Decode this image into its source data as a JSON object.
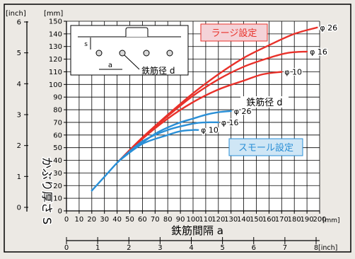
{
  "chart_data": {
    "type": "line",
    "x_axis_mm": {
      "label": "鉄筋間隔 a",
      "unit": "[mm]",
      "range": [
        0,
        200
      ],
      "ticks": [
        0,
        10,
        20,
        30,
        40,
        50,
        60,
        70,
        80,
        90,
        100,
        110,
        120,
        130,
        140,
        150,
        160,
        170,
        180,
        190,
        200
      ]
    },
    "x_axis_inch": {
      "unit": "8[inch]",
      "range": [
        0,
        8
      ],
      "ticks": [
        "0",
        "1",
        "2",
        "3",
        "4",
        "5",
        "6",
        "7",
        "8"
      ]
    },
    "y_axis_mm": {
      "label": "かぶり厚さ S",
      "unit": "[mm]",
      "range": [
        0,
        150
      ],
      "ticks": [
        0,
        10,
        20,
        30,
        40,
        50,
        60,
        70,
        80,
        90,
        100,
        110,
        120,
        130,
        140,
        150
      ]
    },
    "y_axis_inch": {
      "unit": "[inch]",
      "range": [
        0,
        6
      ],
      "ticks": [
        "0",
        "1",
        "2",
        "3",
        "4",
        "5",
        "6"
      ]
    },
    "grid": true,
    "groups": [
      {
        "name": "ラージ設定",
        "color": "#e8312a"
      },
      {
        "name": "スモール設定",
        "color": "#2a8fd6"
      }
    ],
    "series": [
      {
        "name": "φ 26",
        "group": "ラージ設定",
        "x": [
          42,
          60,
          80,
          100,
          120,
          140,
          160,
          180,
          198
        ],
        "y": [
          40,
          58,
          76,
          93,
          108,
          121,
          131,
          140,
          145
        ]
      },
      {
        "name": "φ 16",
        "group": "ラージ設定",
        "x": [
          42,
          60,
          80,
          100,
          120,
          140,
          160,
          175,
          190
        ],
        "y": [
          40,
          58,
          75,
          91,
          104,
          114,
          121,
          125,
          126
        ]
      },
      {
        "name": "φ 10",
        "group": "ラージ設定",
        "x": [
          42,
          60,
          80,
          100,
          120,
          140,
          155,
          170
        ],
        "y": [
          40,
          57,
          73,
          86,
          96,
          103,
          108,
          110
        ]
      },
      {
        "name": "φ 26",
        "group": "スモール設定",
        "x": [
          20,
          30,
          40,
          50,
          60,
          70,
          80,
          90,
          100,
          110,
          120,
          130
        ],
        "y": [
          16,
          27,
          38,
          47,
          54,
          61,
          66,
          70,
          73,
          76,
          78,
          79
        ]
      },
      {
        "name": "φ 16",
        "group": "スモール設定",
        "x": [
          42,
          60,
          80,
          100,
          110,
          120
        ],
        "y": [
          40,
          55,
          64,
          69,
          70,
          70
        ]
      },
      {
        "name": "φ 10",
        "group": "スモール設定",
        "x": [
          42,
          60,
          80,
          90,
          100,
          104
        ],
        "y": [
          40,
          53,
          60,
          63,
          64,
          64
        ]
      }
    ],
    "annotations": {
      "large_box": "ラージ設定",
      "small_box": "スモール設定",
      "rebar_diameter": "鉄筋径 d",
      "inset_rebar_diameter": "鉄筋径 d",
      "inset_spacing": "a",
      "inset_cover": "s"
    }
  }
}
